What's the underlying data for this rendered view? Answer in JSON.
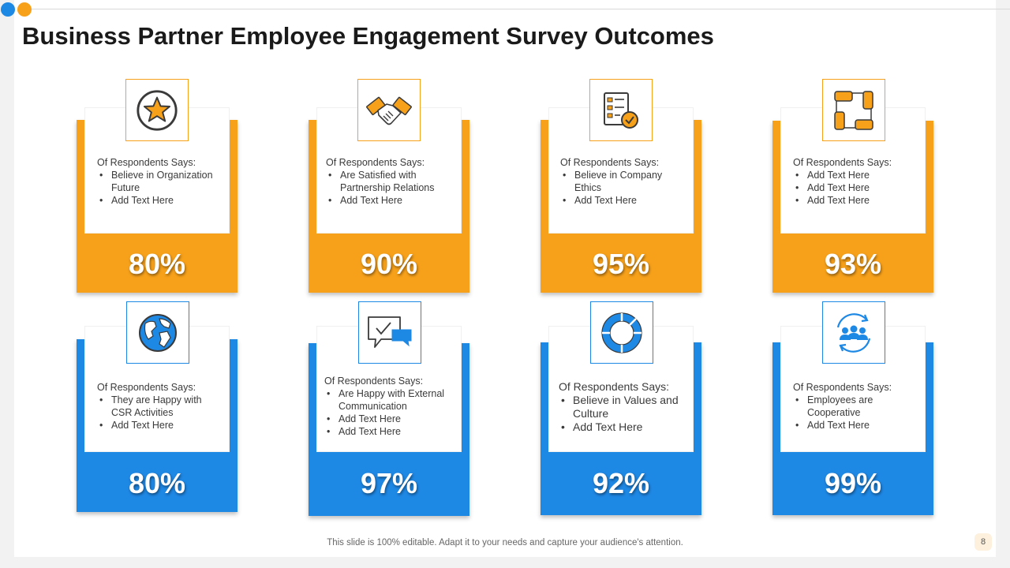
{
  "title": "Business Partner Employee Engagement Survey Outcomes",
  "colors": {
    "orange": "#f7a11a",
    "blue": "#1e88e5"
  },
  "cards": [
    {
      "heading": "Of Respondents Says:",
      "bullets": [
        "Believe in Organization Future",
        "Add Text Here"
      ],
      "value": "80%",
      "icon": "star-icon",
      "color": "orange"
    },
    {
      "heading": "Of Respondents Says:",
      "bullets": [
        "Are Satisfied with Partnership Relations",
        "Add Text Here"
      ],
      "value": "90%",
      "icon": "handshake-icon",
      "color": "orange"
    },
    {
      "heading": "Of Respondents Says:",
      "bullets": [
        "Believe in Company Ethics",
        "Add Text Here"
      ],
      "value": "95%",
      "icon": "checklist-icon",
      "color": "orange"
    },
    {
      "heading": "Of Respondents Says:",
      "bullets": [
        "Add Text Here",
        "Add Text Here",
        "Add Text Here"
      ],
      "value": "93%",
      "icon": "teamwork-hands-icon",
      "color": "orange"
    },
    {
      "heading": "Of Respondents Says:",
      "bullets": [
        "They are Happy with CSR Activities",
        "Add Text Here"
      ],
      "value": "80%",
      "icon": "globe-icon",
      "color": "blue"
    },
    {
      "heading": "Of Respondents Says:",
      "bullets": [
        "Are Happy with External Communication",
        "Add Text Here",
        "Add Text Here"
      ],
      "value": "97%",
      "icon": "chat-bubbles-icon",
      "color": "blue"
    },
    {
      "heading": "Of Respondents Says:",
      "bullets": [
        "Believe in Values and Culture",
        "Add Text Here"
      ],
      "value": "92%",
      "icon": "donut-chart-icon",
      "color": "blue"
    },
    {
      "heading": "Of Respondents Says:",
      "bullets": [
        "Employees are Cooperative",
        "Add Text Here"
      ],
      "value": "99%",
      "icon": "team-cycle-icon",
      "color": "blue"
    }
  ],
  "footer": "This slide is 100% editable. Adapt it to your needs and capture your audience's attention.",
  "page_number": "8"
}
